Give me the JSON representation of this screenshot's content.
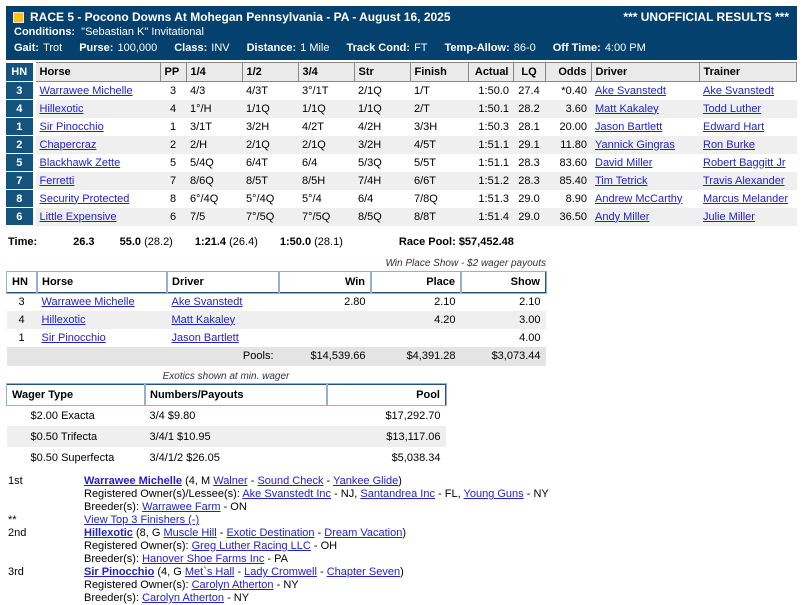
{
  "colors": {
    "banner_navy": "#05416f",
    "hn_badge_navy": "#14537e",
    "link_blue": "#2222cc",
    "row_stripe": "#efefef",
    "header_gray": "#eaeaea",
    "bullet_gold": "#ffc20e"
  },
  "banner": {
    "title": "RACE 5 - Pocono Downs At Mohegan Pennsylvania - PA - August 16, 2025",
    "unofficial": "*** UNOFFICIAL RESULTS ***",
    "conditions_label": "Conditions:",
    "conditions_value": "\"Sebastian K\" Invitational",
    "info": [
      {
        "label": "Gait:",
        "value": "Trot"
      },
      {
        "label": "Purse:",
        "value": "100,000"
      },
      {
        "label": "Class:",
        "value": "INV"
      },
      {
        "label": "Distance:",
        "value": "1 Mile"
      },
      {
        "label": "Track Cond:",
        "value": "FT"
      },
      {
        "label": "Temp-Allow:",
        "value": "86-0"
      },
      {
        "label": "Off Time:",
        "value": "4:00 PM"
      }
    ]
  },
  "results": {
    "headers": {
      "hn": "HN",
      "horse": "Horse",
      "pp": "PP",
      "q1": "1/4",
      "q2": "1/2",
      "q3": "3/4",
      "str": "Str",
      "finish": "Finish",
      "actual": "Actual",
      "lq": "LQ",
      "odds": "Odds",
      "driver": "Driver",
      "trainer": "Trainer"
    },
    "rows": [
      {
        "hn": "3",
        "horse": "Warrawee Michelle",
        "pp": "3",
        "q1": "4/3",
        "q2": "4/3T",
        "q3": "3°/1T",
        "str": "2/1Q",
        "finish": "1/T",
        "actual": "1:50.0",
        "lq": "27.4",
        "odds": "*0.40",
        "driver": "Ake Svanstedt",
        "trainer": "Ake Svanstedt"
      },
      {
        "hn": "4",
        "horse": "Hillexotic",
        "pp": "4",
        "q1": "1°/H",
        "q2": "1/1Q",
        "q3": "1/1Q",
        "str": "1/1Q",
        "finish": "2/T",
        "actual": "1:50.1",
        "lq": "28.2",
        "odds": "3.60",
        "driver": "Matt Kakaley",
        "trainer": "Todd Luther"
      },
      {
        "hn": "1",
        "horse": "Sir Pinocchio",
        "pp": "1",
        "q1": "3/1T",
        "q2": "3/2H",
        "q3": "4/2T",
        "str": "4/2H",
        "finish": "3/3H",
        "actual": "1:50.3",
        "lq": "28.1",
        "odds": "20.00",
        "driver": "Jason Bartlett",
        "trainer": "Edward Hart"
      },
      {
        "hn": "2",
        "horse": "Chapercraz",
        "pp": "2",
        "q1": "2/H",
        "q2": "2/1Q",
        "q3": "2/1Q",
        "str": "3/2H",
        "finish": "4/5T",
        "actual": "1:51.1",
        "lq": "29.1",
        "odds": "11.80",
        "driver": "Yannick Gingras",
        "trainer": "Ron Burke"
      },
      {
        "hn": "5",
        "horse": "Blackhawk Zette",
        "pp": "5",
        "q1": "5/4Q",
        "q2": "6/4T",
        "q3": "6/4",
        "str": "5/3Q",
        "finish": "5/5T",
        "actual": "1:51.1",
        "lq": "28.3",
        "odds": "83.60",
        "driver": "David Miller",
        "trainer": "Robert Baggitt Jr"
      },
      {
        "hn": "7",
        "horse": "Ferretti",
        "pp": "7",
        "q1": "8/6Q",
        "q2": "8/5T",
        "q3": "8/5H",
        "str": "7/4H",
        "finish": "6/6T",
        "actual": "1:51.2",
        "lq": "28.3",
        "odds": "85.40",
        "driver": "Tim Tetrick",
        "trainer": "Travis Alexander"
      },
      {
        "hn": "8",
        "horse": "Security Protected",
        "pp": "8",
        "q1": "6°/4Q",
        "q2": "5°/4Q",
        "q3": "5°/4",
        "str": "6/4",
        "finish": "7/8Q",
        "actual": "1:51.3",
        "lq": "29.0",
        "odds": "8.90",
        "driver": "Andrew McCarthy",
        "trainer": "Marcus Melander"
      },
      {
        "hn": "6",
        "horse": "Little Expensive",
        "pp": "6",
        "q1": "7/5",
        "q2": "7°/5Q",
        "q3": "7°/5Q",
        "str": "8/5Q",
        "finish": "8/8T",
        "actual": "1:51.4",
        "lq": "29.0",
        "odds": "36.50",
        "driver": "Andy Miller",
        "trainer": "Julie Miller"
      }
    ]
  },
  "time_line": {
    "label": "Time:",
    "segments": [
      {
        "time": "26.3",
        "split": ""
      },
      {
        "time": "55.0",
        "split": "(28.2)"
      },
      {
        "time": "1:21.4",
        "split": "(26.4)"
      },
      {
        "time": "1:50.0",
        "split": "(28.1)"
      }
    ],
    "race_pool_label": "Race Pool:",
    "race_pool_value": "$57,452.48"
  },
  "wps": {
    "caption": "Win Place Show - $2 wager payouts",
    "headers": {
      "hn": "HN",
      "horse": "Horse",
      "driver": "Driver",
      "win": "Win",
      "place": "Place",
      "show": "Show"
    },
    "rows": [
      {
        "hn": "3",
        "horse": "Warrawee Michelle",
        "driver": "Ake Svanstedt",
        "win": "2.80",
        "place": "2.10",
        "show": "2.10"
      },
      {
        "hn": "4",
        "horse": "Hillexotic",
        "driver": "Matt Kakaley",
        "win": "",
        "place": "4.20",
        "show": "3.00"
      },
      {
        "hn": "1",
        "horse": "Sir Pinocchio",
        "driver": "Jason Bartlett",
        "win": "",
        "place": "",
        "show": "4.00"
      }
    ],
    "pools_label": "Pools:",
    "pools": {
      "win": "$14,539.66",
      "place": "$4,391.28",
      "show": "$3,073.44"
    }
  },
  "exotics": {
    "caption": "Exotics shown at min. wager",
    "headers": {
      "type": "Wager Type",
      "numbers": "Numbers/Payouts",
      "pool": "Pool"
    },
    "rows": [
      {
        "type": "$2.00 Exacta",
        "numbers": "3/4 $9.80",
        "pool": "$17,292.70"
      },
      {
        "type": "$0.50 Trifecta",
        "numbers": "3/4/1 $10.95",
        "pool": "$13,117.06"
      },
      {
        "type": "$0.50 Superfecta",
        "numbers": "3/4/1/2 $26.05",
        "pool": "$5,038.34"
      }
    ]
  },
  "finishers": {
    "note_marker": "**",
    "note_link": "View Top 3 Finishers (-)",
    "items": [
      {
        "place": "1st",
        "name": "Warrawee Michelle",
        "ped_prefix": "(4, M",
        "pedigree": [
          {
            "text": "Walner",
            "after": " - "
          },
          {
            "text": "Sound Check",
            "after": " - "
          },
          {
            "text": "Yankee Glide",
            "after": ")"
          }
        ],
        "owner_label": "Registered Owner(s)/Lessee(s):",
        "owners": [
          {
            "text": "Ake Svanstedt Inc",
            "after": " - NJ, "
          },
          {
            "text": "Santandrea Inc",
            "after": " - FL, "
          },
          {
            "text": "Young Guns",
            "after": " - NY"
          }
        ],
        "breeder_label": "Breeder(s):",
        "breeders": [
          {
            "text": "Warrawee Farm",
            "after": " - ON"
          }
        ]
      },
      {
        "place": "2nd",
        "name": "Hillexotic",
        "ped_prefix": "(8, G",
        "pedigree": [
          {
            "text": "Muscle Hill",
            "after": " - "
          },
          {
            "text": "Exotic Destination",
            "after": " - "
          },
          {
            "text": "Dream Vacation",
            "after": ")"
          }
        ],
        "owner_label": "Registered Owner(s):",
        "owners": [
          {
            "text": "Greg Luther Racing LLC",
            "after": " - OH"
          }
        ],
        "breeder_label": "Breeder(s):",
        "breeders": [
          {
            "text": "Hanover Shoe Farms Inc",
            "after": " - PA"
          }
        ]
      },
      {
        "place": "3rd",
        "name": "Sir Pinocchio",
        "ped_prefix": "(4, G",
        "pedigree": [
          {
            "text": "Met`s Hall",
            "after": " - "
          },
          {
            "text": "Lady Cromwell",
            "after": " - "
          },
          {
            "text": "Chapter Seven",
            "after": ")"
          }
        ],
        "owner_label": "Registered Owner(s):",
        "owners": [
          {
            "text": "Carolyn Atherton",
            "after": " - NY"
          }
        ],
        "breeder_label": "Breeder(s):",
        "breeders": [
          {
            "text": "Carolyn Atherton",
            "after": " - NY"
          }
        ]
      }
    ]
  }
}
